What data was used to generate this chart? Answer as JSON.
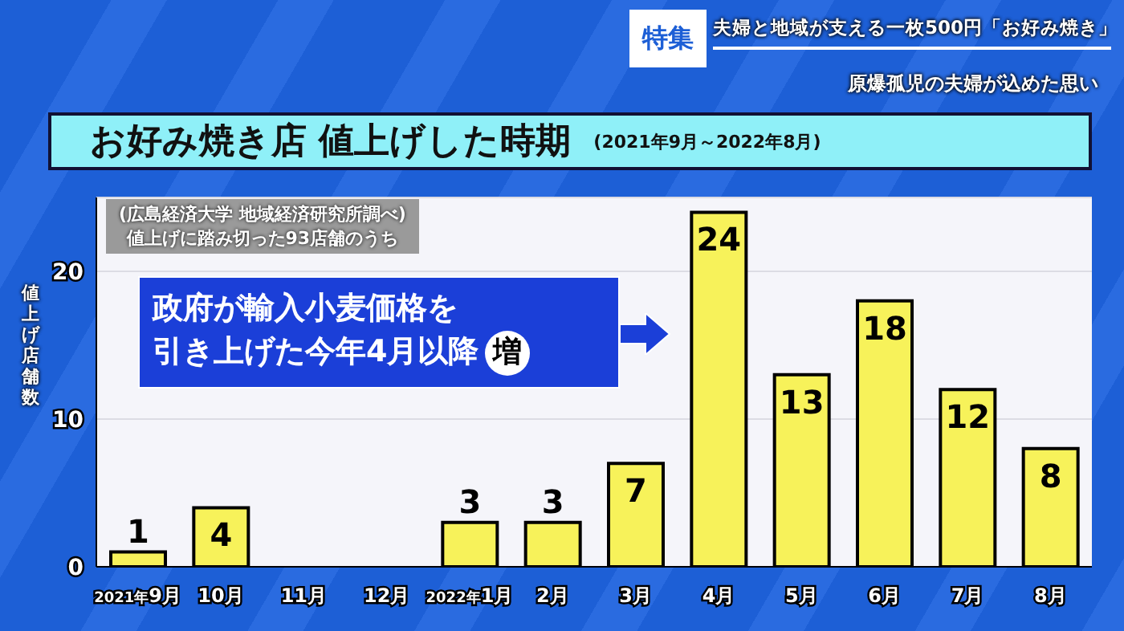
{
  "chart_data": {
    "type": "bar",
    "title": "お好み焼き店 値上げした時期",
    "subtitle": "(2021年9月～2022年8月)",
    "ylabel": "値上げ店舗数",
    "categories": [
      "2021年9月",
      "10月",
      "11月",
      "12月",
      "2022年1月",
      "2月",
      "3月",
      "4月",
      "5月",
      "6月",
      "7月",
      "8月"
    ],
    "values": [
      1,
      4,
      null,
      null,
      3,
      3,
      7,
      24,
      13,
      18,
      12,
      8
    ],
    "color": "#f7f25a",
    "data_labels": true,
    "ylim": [
      0,
      25
    ],
    "yticks": [
      0,
      10,
      20
    ],
    "grid": "y",
    "annotations": [
      "特集",
      "夫婦と地域が支える一枚500円「お好み焼き」",
      "原爆孤児の夫婦が込めた思い",
      "(広島経済大学 地域経済研究所調べ)",
      "値上げに踏み切った93店舗のうち",
      "政府が輸入小麦価格を",
      "引き上げた今年4月以降",
      "増"
    ]
  }
}
